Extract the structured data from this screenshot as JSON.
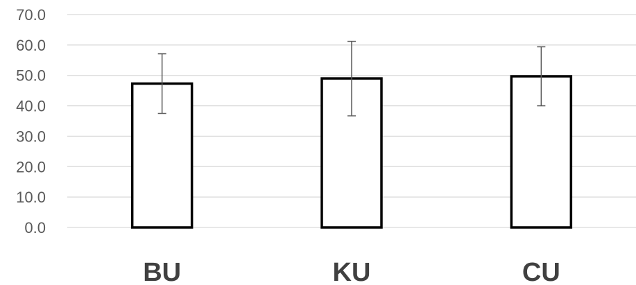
{
  "chart_data": {
    "type": "bar",
    "categories": [
      "BU",
      "KU",
      "CU"
    ],
    "values": [
      47.3,
      49.0,
      49.7
    ],
    "error": [
      {
        "low": 37.5,
        "high": 57.1
      },
      {
        "low": 36.7,
        "high": 61.2
      },
      {
        "low": 40.0,
        "high": 59.4
      }
    ],
    "ylim": [
      0,
      70
    ],
    "yticks": [
      "0.0",
      "10.0",
      "20.0",
      "30.0",
      "40.0",
      "50.0",
      "60.0",
      "70.0"
    ],
    "grid": true,
    "colors": {
      "bar_fill": "#ffffff",
      "bar_stroke": "#000000",
      "grid": "#d9d9d9",
      "error_bar": "#595959"
    }
  }
}
